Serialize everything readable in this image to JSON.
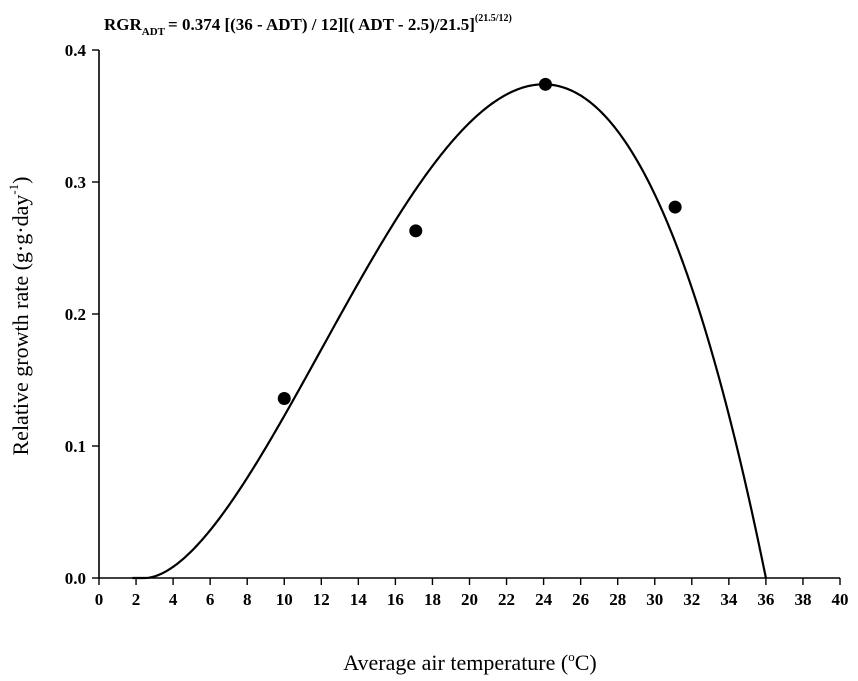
{
  "chart_data": {
    "type": "scatter",
    "title": {
      "rgr": "RGR",
      "rgr_sub": "ADT",
      "formula": "= 0.374 [(36 - ADT) / 12][( ADT - 2.5)/21.5]",
      "exponent": "(21.5/12)"
    },
    "xlabel": "Average air temperature (",
    "xlabel_deg": "o",
    "xlabel_unit": "C)",
    "ylabel": "Relative growth rate (g·g·day",
    "ylabel_sup": "-1",
    "ylabel_close": ")",
    "xlim": [
      0,
      40
    ],
    "ylim": [
      0,
      0.4
    ],
    "x_ticks": [
      0,
      2,
      4,
      6,
      8,
      10,
      12,
      14,
      16,
      18,
      20,
      22,
      24,
      26,
      28,
      30,
      32,
      34,
      36,
      38,
      40
    ],
    "y_ticks": [
      0.0,
      0.1,
      0.2,
      0.3,
      0.4
    ],
    "y_tick_labels": [
      "0.0",
      "0.1",
      "0.2",
      "0.3",
      "0.4"
    ],
    "grid": false,
    "points": [
      {
        "x": 10.0,
        "y": 0.136
      },
      {
        "x": 17.1,
        "y": 0.263
      },
      {
        "x": 24.1,
        "y": 0.374
      },
      {
        "x": 31.1,
        "y": 0.281
      }
    ],
    "model": {
      "a": 0.374,
      "tmax": 36,
      "tmin": 2.5,
      "topt_range": 12,
      "tmin_range": 21.5,
      "exponent": 1.7917
    }
  }
}
